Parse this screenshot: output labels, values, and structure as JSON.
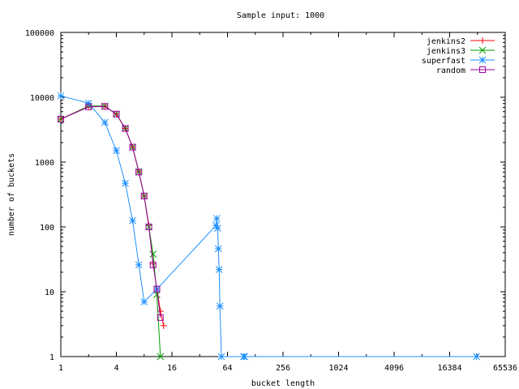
{
  "chart_data": {
    "type": "line",
    "title": "Sample input: 1000",
    "xlabel": "bucket length",
    "ylabel": "number of buckets",
    "x_scale": "log2",
    "y_scale": "log10",
    "xlim": [
      1,
      65536
    ],
    "ylim": [
      1,
      100000
    ],
    "x_ticks": [
      1,
      4,
      16,
      64,
      256,
      1024,
      4096,
      16384,
      65536
    ],
    "x_tick_labels": [
      "1",
      "4",
      "16",
      "64",
      "256",
      "1024",
      "4096",
      "16384",
      "65536"
    ],
    "y_ticks": [
      1,
      10,
      100,
      1000,
      10000,
      100000
    ],
    "y_tick_labels": [
      "1",
      "10",
      "100",
      "1000",
      "10000",
      "100000"
    ],
    "grid": false,
    "legend_position": "top-right",
    "series": [
      {
        "name": "jenkins2",
        "color": "#ff0000",
        "marker": "plus",
        "points": [
          [
            1,
            4600
          ],
          [
            2,
            7300
          ],
          [
            3,
            7300
          ],
          [
            4,
            5500
          ],
          [
            5,
            3300
          ],
          [
            6,
            1700
          ],
          [
            7,
            710
          ],
          [
            8,
            300
          ],
          [
            9,
            105
          ],
          [
            10,
            27
          ],
          [
            11,
            11
          ],
          [
            12,
            5
          ],
          [
            13,
            3
          ]
        ]
      },
      {
        "name": "jenkins3",
        "color": "#00a000",
        "marker": "cross",
        "points": [
          [
            1,
            4600
          ],
          [
            2,
            7300
          ],
          [
            3,
            7300
          ],
          [
            4,
            5500
          ],
          [
            5,
            3300
          ],
          [
            6,
            1700
          ],
          [
            7,
            710
          ],
          [
            8,
            300
          ],
          [
            9,
            100
          ],
          [
            10,
            38
          ],
          [
            11,
            9
          ],
          [
            12,
            1
          ]
        ]
      },
      {
        "name": "superfast",
        "color": "#1e90ff",
        "marker": "star",
        "points": [
          [
            1,
            10500
          ],
          [
            2,
            8100
          ],
          [
            3,
            4100
          ],
          [
            4,
            1500
          ],
          [
            5,
            470
          ],
          [
            6,
            125
          ],
          [
            7,
            26
          ],
          [
            8,
            7
          ],
          [
            11,
            11
          ],
          [
            48,
            105
          ],
          [
            49,
            135
          ],
          [
            50,
            95
          ],
          [
            51,
            46
          ],
          [
            52,
            22
          ],
          [
            53,
            6
          ],
          [
            55,
            1
          ],
          [
            96,
            1
          ],
          [
            98,
            1
          ],
          [
            32000,
            1
          ]
        ]
      },
      {
        "name": "random",
        "color": "#a000a0",
        "marker": "square",
        "points": [
          [
            1,
            4600
          ],
          [
            2,
            7100
          ],
          [
            3,
            7200
          ],
          [
            4,
            5500
          ],
          [
            5,
            3300
          ],
          [
            6,
            1700
          ],
          [
            7,
            700
          ],
          [
            8,
            300
          ],
          [
            9,
            100
          ],
          [
            10,
            26
          ],
          [
            11,
            11
          ],
          [
            12,
            4
          ]
        ]
      }
    ]
  }
}
